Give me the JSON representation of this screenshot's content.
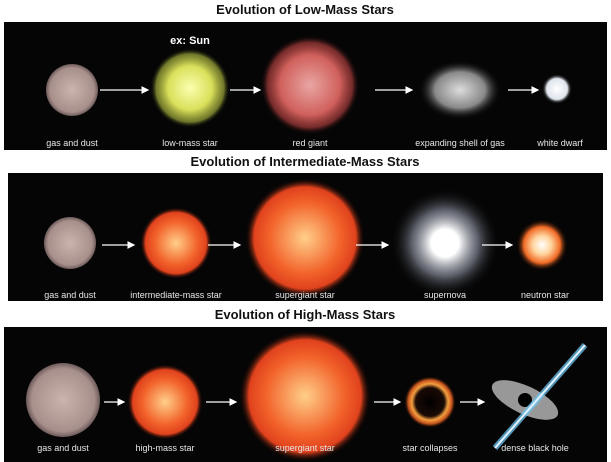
{
  "panels": [
    {
      "title": "Evolution of Low-Mass Stars",
      "annotation": "ex: Sun",
      "stages": [
        "gas and dust",
        "low-mass star",
        "red giant",
        "expanding shell of gas",
        "white dwarf"
      ]
    },
    {
      "title": "Evolution of Intermediate-Mass Stars",
      "stages": [
        "gas and dust",
        "intermediate-mass star",
        "supergiant star",
        "supernova",
        "neutron star"
      ]
    },
    {
      "title": "Evolution of High-Mass Stars",
      "stages": [
        "gas and dust",
        "high-mass star",
        "supergiant star",
        "star collapses",
        "dense black hole"
      ]
    }
  ]
}
